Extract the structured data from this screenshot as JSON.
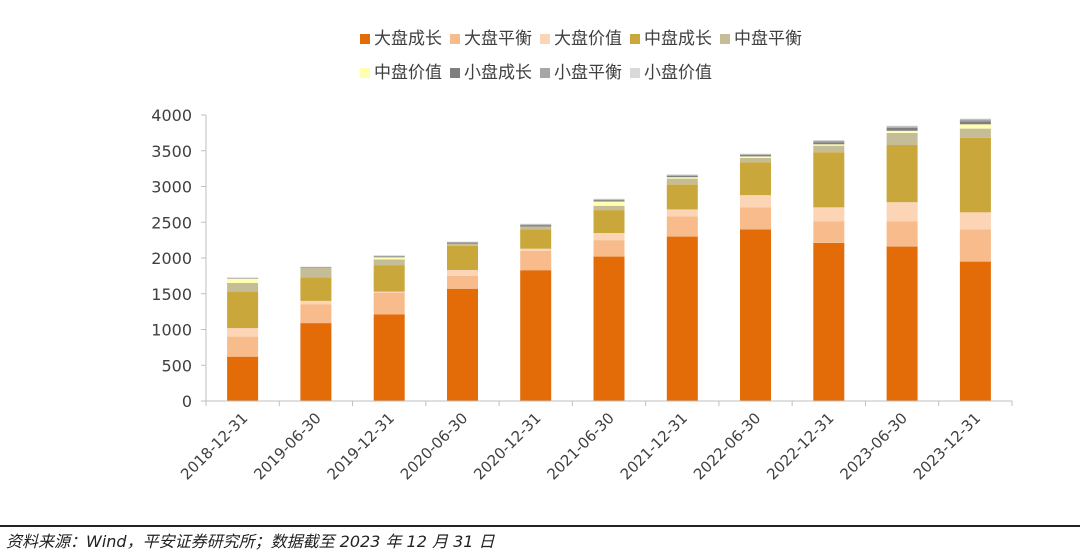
{
  "chart_data": {
    "type": "stacked-bar",
    "categories": [
      "2018-12-31",
      "2019-06-30",
      "2019-12-31",
      "2020-06-30",
      "2020-12-31",
      "2021-06-30",
      "2021-12-31",
      "2022-06-30",
      "2022-12-31",
      "2023-06-30",
      "2023-12-31"
    ],
    "series": [
      {
        "name": "大盘成长",
        "color": "#E36C09",
        "values": [
          620,
          1090,
          1210,
          1570,
          1830,
          2020,
          2300,
          2400,
          2210,
          2160,
          1950
        ]
      },
      {
        "name": "大盘平衡",
        "color": "#F8BB8C",
        "values": [
          280,
          260,
          300,
          180,
          270,
          230,
          280,
          310,
          300,
          350,
          450
        ]
      },
      {
        "name": "大盘价值",
        "color": "#FBD5B5",
        "values": [
          120,
          50,
          20,
          80,
          30,
          100,
          100,
          170,
          200,
          270,
          240
        ]
      },
      {
        "name": "中盘成长",
        "color": "#C9A73A",
        "values": [
          510,
          330,
          370,
          340,
          270,
          320,
          350,
          460,
          770,
          800,
          1040
        ]
      },
      {
        "name": "中盘平衡",
        "color": "#C4BD97",
        "values": [
          120,
          130,
          80,
          30,
          40,
          60,
          80,
          60,
          90,
          170,
          130
        ]
      },
      {
        "name": "中盘价值",
        "color": "#FFFFB0",
        "values": [
          60,
          0,
          30,
          0,
          0,
          60,
          20,
          20,
          20,
          30,
          60
        ]
      },
      {
        "name": "小盘成长",
        "color": "#7F7F7F",
        "values": [
          0,
          10,
          10,
          20,
          20,
          20,
          20,
          20,
          30,
          40,
          40
        ]
      },
      {
        "name": "小盘平衡",
        "color": "#A6A6A6",
        "values": [
          10,
          0,
          10,
          0,
          10,
          10,
          10,
          10,
          20,
          20,
          30
        ]
      },
      {
        "name": "小盘价值",
        "color": "#D9D9D9",
        "values": [
          10,
          10,
          10,
          10,
          10,
          10,
          10,
          10,
          10,
          10,
          10
        ]
      }
    ],
    "ylim": [
      0,
      4000
    ],
    "yticks": [
      0,
      500,
      1000,
      1500,
      2000,
      2500,
      3000,
      3500,
      4000
    ],
    "legend_position": "top",
    "grid": false
  },
  "footer": {
    "source": "资料来源：Wind，平安证券研究所；数据截至 2023 年 12 月 31 日"
  }
}
